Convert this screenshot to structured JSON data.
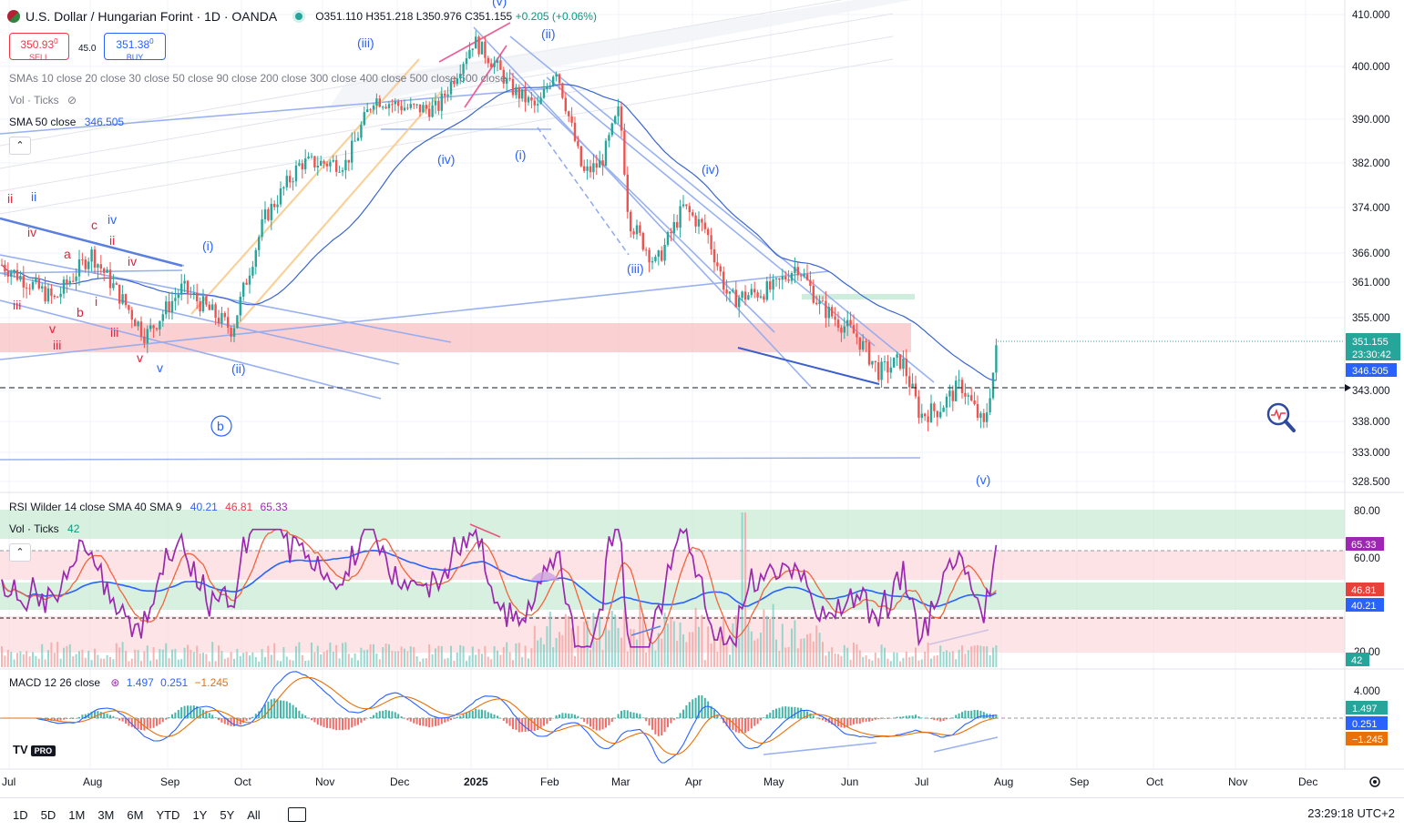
{
  "header": {
    "title": "U.S. Dollar / Hungarian Forint · 1D · OANDA",
    "open": "O351.110",
    "high": "H351.218",
    "low": "L350.976",
    "close": "C351.155",
    "change": "+0.205 (+0.06%)"
  },
  "trade": {
    "sell_price": "350.93",
    "sell_sup": "0",
    "sell_label": "SELL",
    "spread": "45.0",
    "buy_price": "351.38",
    "buy_sup": "0",
    "buy_label": "BUY"
  },
  "indicators": {
    "smas_line": "SMAs 10 close 20 close 30 close 50 close 90 close 200 close 300 close 400 close 500 close 600 close",
    "vol_ticks": "Vol · Ticks",
    "sma50_label": "SMA 50 close",
    "sma50_value": "346.505",
    "rsi_label": "RSI Wilder 14 close SMA 40 SMA 9",
    "rsi_v1": "40.21",
    "rsi_v2": "46.81",
    "rsi_v3": "65.33",
    "vol_ticks2": "Vol · Ticks",
    "vol_value": "42",
    "macd_label": "MACD 12 26 close",
    "macd_v1": "1.497",
    "macd_v2": "0.251",
    "macd_v3": "−1.245"
  },
  "price_axis": [
    "410.000",
    "400.000",
    "390.000",
    "382.000",
    "374.000",
    "366.000",
    "361.000",
    "355.000",
    "343.000",
    "338.000",
    "333.000",
    "328.500"
  ],
  "price_labels": {
    "last": "351.155",
    "countdown": "23:30:42",
    "sma": "346.505"
  },
  "rsi_axis": [
    "80.00",
    "60.00",
    "20.00"
  ],
  "rsi_labels": {
    "a": "65.33",
    "b": "46.81",
    "c": "40.21",
    "vol": "42"
  },
  "macd_axis": [
    "4.000"
  ],
  "macd_labels": {
    "a": "1.497",
    "b": "0.251",
    "c": "−1.245"
  },
  "time_axis": [
    "Jul",
    "Aug",
    "Sep",
    "Oct",
    "Nov",
    "Dec",
    "2025",
    "Feb",
    "Mar",
    "Apr",
    "May",
    "Jun",
    "Jul",
    "Aug",
    "Sep",
    "Oct",
    "Nov",
    "Dec"
  ],
  "wave_labels": [
    "(v)",
    "(iii)",
    "(ii)",
    "(iv)",
    "(i)",
    "(iv)",
    "(iii)",
    "(i)",
    "(ii)",
    "b",
    "(v)",
    "ii",
    "ii",
    "iv",
    "c",
    "iv",
    "ii",
    "a",
    "iv",
    "b",
    "i",
    "iii",
    "iii",
    "v",
    "iii",
    "v",
    "v"
  ],
  "bottom": {
    "ranges": [
      "1D",
      "5D",
      "1M",
      "3M",
      "6M",
      "YTD",
      "1Y",
      "5Y",
      "All"
    ],
    "clock": "23:29:18 UTC+2"
  },
  "logo": {
    "text": "TV",
    "badge": "PRO"
  },
  "colors": {
    "up": "#26a69a",
    "down": "#ef5350",
    "blue": "#2962ff",
    "rsi": "#9c27b0",
    "accent_zone": "#f8c0c4"
  },
  "chart_data": {
    "type": "candlestick",
    "instrument": "USD/HUF",
    "close_series": [
      {
        "date": "2024-07",
        "value": 362.0
      },
      {
        "date": "2024-08",
        "value": 358.0
      },
      {
        "date": "2024-09",
        "value": 354.0
      },
      {
        "date": "2024-10",
        "value": 367.0
      },
      {
        "date": "2024-11",
        "value": 383.0
      },
      {
        "date": "2024-12",
        "value": 393.0
      },
      {
        "date": "2025-01",
        "value": 401.0
      },
      {
        "date": "2025-02",
        "value": 391.0
      },
      {
        "date": "2025-03",
        "value": 372.0
      },
      {
        "date": "2025-04",
        "value": 365.0
      },
      {
        "date": "2025-05",
        "value": 358.0
      },
      {
        "date": "2025-06",
        "value": 344.0
      },
      {
        "date": "2025-07",
        "value": 339.0
      },
      {
        "date": "2025-07-31",
        "value": 351.155
      }
    ],
    "ylim": [
      326,
      413
    ],
    "rsi_ylim": [
      10,
      85
    ],
    "macd_ylim": [
      -8,
      6
    ]
  }
}
